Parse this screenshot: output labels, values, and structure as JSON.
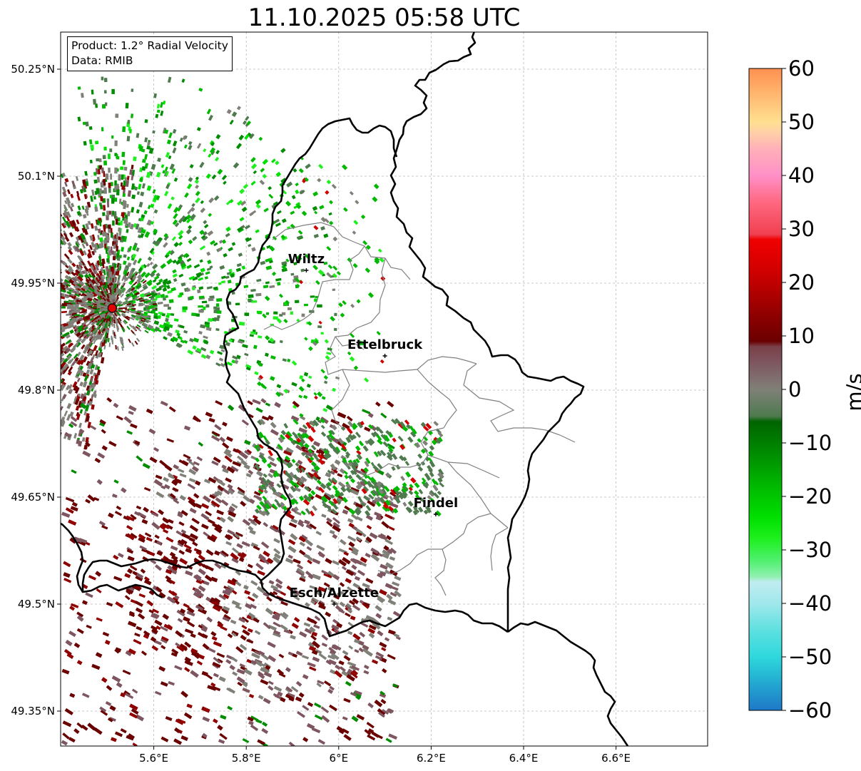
{
  "title": "11.10.2025 05:58 UTC",
  "info_box": {
    "product": "Product: 1.2° Radial Velocity",
    "data_source": "Data: RMIB"
  },
  "map": {
    "lon_range": [
      5.4,
      6.8
    ],
    "lat_range": [
      49.3,
      50.3
    ],
    "x_ticks": [
      "5.6°E",
      "5.8°E",
      "6°E",
      "6.2°E",
      "6.4°E",
      "6.6°E"
    ],
    "y_ticks": [
      "50.25°N",
      "50.1°N",
      "49.95°N",
      "49.8°N",
      "49.65°N",
      "49.5°N",
      "49.35°N"
    ],
    "gridlines": true,
    "radar_site": {
      "lon": 5.51,
      "lat": 49.915,
      "color": "#e00000"
    },
    "cities": [
      {
        "name": "Wiltz",
        "lon": 5.93,
        "lat": 49.968
      },
      {
        "name": "Ettelbruck",
        "lon": 6.1,
        "lat": 49.848
      },
      {
        "name": "Findel",
        "lon": 6.21,
        "lat": 49.626
      },
      {
        "name": "Esch/Alzette",
        "lon": 5.99,
        "lat": 49.5
      }
    ]
  },
  "colorbar": {
    "min": -60,
    "max": 60,
    "ticks": [
      "60",
      "50",
      "40",
      "30",
      "20",
      "10",
      "0",
      "−10",
      "−20",
      "−30",
      "−40",
      "−50",
      "−60"
    ],
    "unit": "m/s",
    "color_stops": [
      {
        "value": -60,
        "color": "#1f78c8"
      },
      {
        "value": -55,
        "color": "#22a8d0"
      },
      {
        "value": -50,
        "color": "#2ed8dc"
      },
      {
        "value": -45,
        "color": "#5ee0e0"
      },
      {
        "value": -40,
        "color": "#a0e8ec"
      },
      {
        "value": -36,
        "color": "#c0ecf0"
      },
      {
        "value": -35,
        "color": "#90f0b0"
      },
      {
        "value": -32,
        "color": "#50f070"
      },
      {
        "value": -28,
        "color": "#20f020"
      },
      {
        "value": -24,
        "color": "#00e000"
      },
      {
        "value": -18,
        "color": "#00b800"
      },
      {
        "value": -12,
        "color": "#008c00"
      },
      {
        "value": -6,
        "color": "#006400"
      },
      {
        "value": -5,
        "color": "#4e7a4e"
      },
      {
        "value": 0,
        "color": "#808078"
      },
      {
        "value": 5,
        "color": "#7e5660"
      },
      {
        "value": 8,
        "color": "#7a4048"
      },
      {
        "value": 9,
        "color": "#6a0000"
      },
      {
        "value": 14,
        "color": "#900000"
      },
      {
        "value": 22,
        "color": "#d00000"
      },
      {
        "value": 28,
        "color": "#f00000"
      },
      {
        "value": 29,
        "color": "#f04050"
      },
      {
        "value": 35,
        "color": "#ff6880"
      },
      {
        "value": 40,
        "color": "#ff90c8"
      },
      {
        "value": 45,
        "color": "#ffb0b8"
      },
      {
        "value": 48,
        "color": "#ffd0a8"
      },
      {
        "value": 50,
        "color": "#ffe090"
      },
      {
        "value": 55,
        "color": "#ffb870"
      },
      {
        "value": 60,
        "color": "#ff9050"
      }
    ]
  },
  "colors": {
    "border": "#000000",
    "admin_border": "#808080",
    "grid": "#b8b8b8"
  }
}
